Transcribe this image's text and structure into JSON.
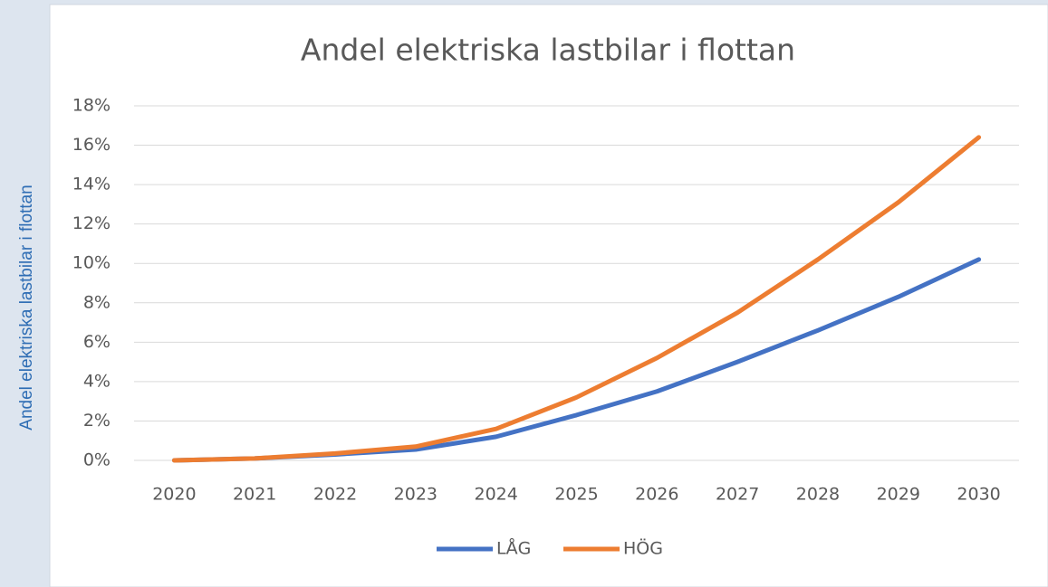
{
  "chart_data": {
    "type": "line",
    "title": "Andel elektriska lastbilar i flottan",
    "y_label": "Andel elektriska lastbilar i flottan",
    "categories": [
      "2020",
      "2021",
      "2022",
      "2023",
      "2024",
      "2025",
      "2026",
      "2027",
      "2028",
      "2029",
      "2030"
    ],
    "series": [
      {
        "name": "LÅG",
        "color": "#4472c4",
        "values": [
          0,
          0.1,
          0.3,
          0.55,
          1.2,
          2.3,
          3.5,
          5.0,
          6.6,
          8.3,
          10.2
        ]
      },
      {
        "name": "HÖG",
        "color": "#ed7d31",
        "values": [
          0,
          0.1,
          0.35,
          0.7,
          1.6,
          3.2,
          5.2,
          7.5,
          10.2,
          13.1,
          16.4
        ]
      }
    ],
    "ylim": [
      0,
      18
    ],
    "yticks": [
      {
        "value": 0,
        "label": "0%"
      },
      {
        "value": 2,
        "label": "2%"
      },
      {
        "value": 4,
        "label": "4%"
      },
      {
        "value": 6,
        "label": "6%"
      },
      {
        "value": 8,
        "label": "8%"
      },
      {
        "value": 10,
        "label": "10%"
      },
      {
        "value": 12,
        "label": "12%"
      },
      {
        "value": 14,
        "label": "14%"
      },
      {
        "value": 16,
        "label": "16%"
      },
      {
        "value": 18,
        "label": "18%"
      }
    ],
    "grid": true,
    "legend": "bottom"
  }
}
